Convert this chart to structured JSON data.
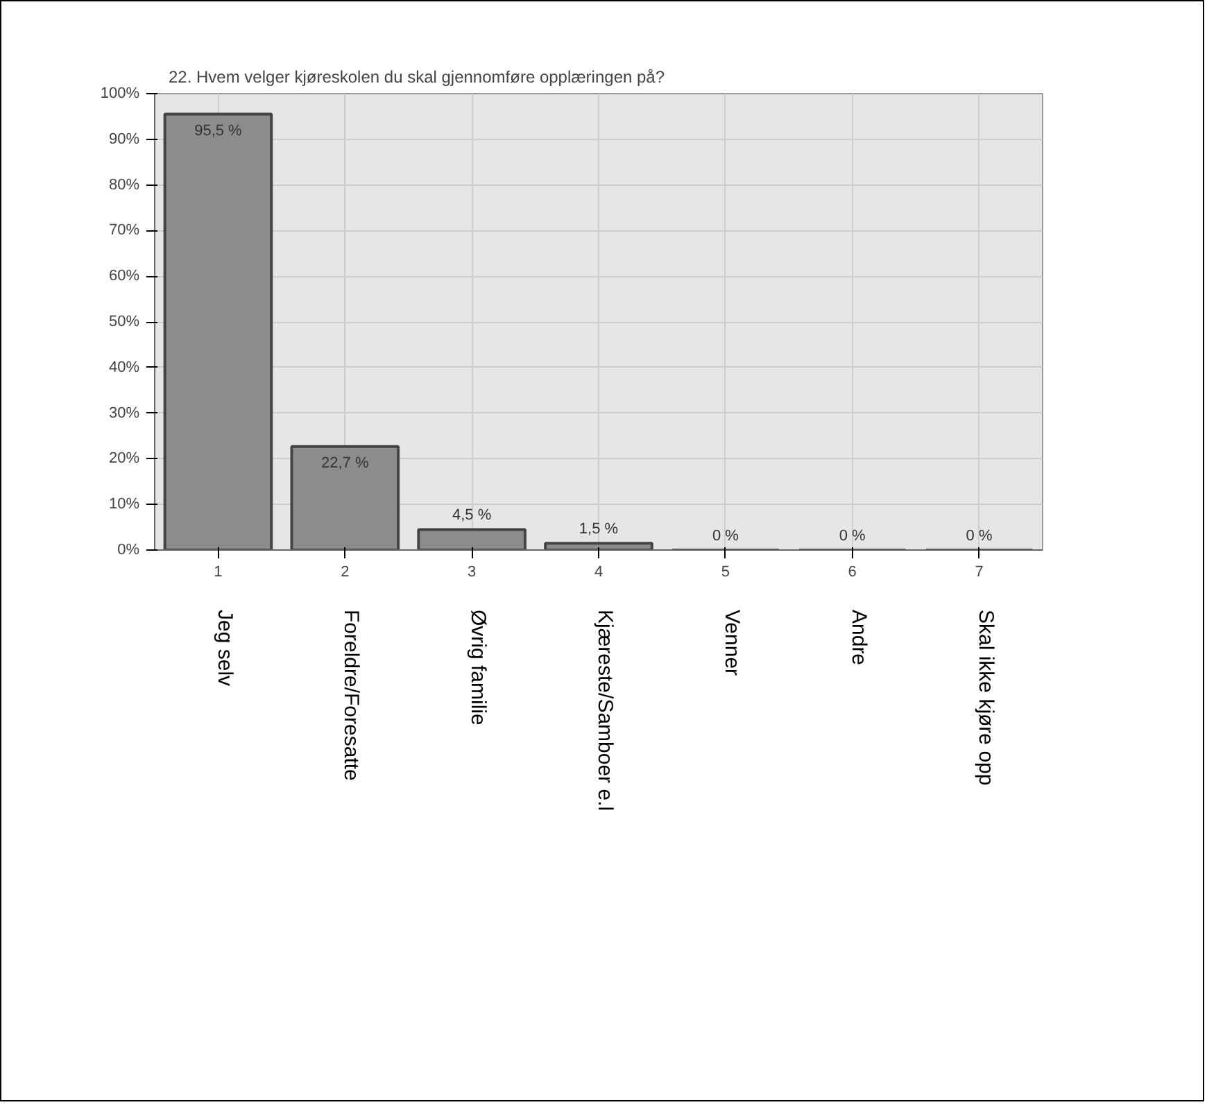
{
  "chart_data": {
    "type": "bar",
    "title": "22. Hvem velger kjøreskolen du skal gjennomføre opplæringen på?",
    "categories": [
      "1",
      "2",
      "3",
      "4",
      "5",
      "6",
      "7"
    ],
    "values": [
      95.5,
      22.7,
      4.5,
      1.5,
      0,
      0,
      0
    ],
    "value_labels": [
      "95,5 %",
      "22,7 %",
      "4,5 %",
      "1,5 %",
      "0 %",
      "0 %",
      "0 %"
    ],
    "color": "#8c8c8c",
    "ylim": [
      0,
      100
    ],
    "yticks": [
      {
        "value": 0,
        "label": "0%"
      },
      {
        "value": 10,
        "label": "10%"
      },
      {
        "value": 20,
        "label": "20%"
      },
      {
        "value": 30,
        "label": "30%"
      },
      {
        "value": 40,
        "label": "40%"
      },
      {
        "value": 50,
        "label": "50%"
      },
      {
        "value": 60,
        "label": "60%"
      },
      {
        "value": 70,
        "label": "70%"
      },
      {
        "value": 80,
        "label": "80%"
      },
      {
        "value": 90,
        "label": "90%"
      },
      {
        "value": 100,
        "label": "100%"
      }
    ],
    "annotations": [
      "Jeg selv",
      "Foreldre/Foresatte",
      "Øvrig familie",
      "Kjæreste/Samboer e.l",
      "Venner",
      "Andre",
      "Skal ikke kjøre opp"
    ],
    "grid": true
  }
}
